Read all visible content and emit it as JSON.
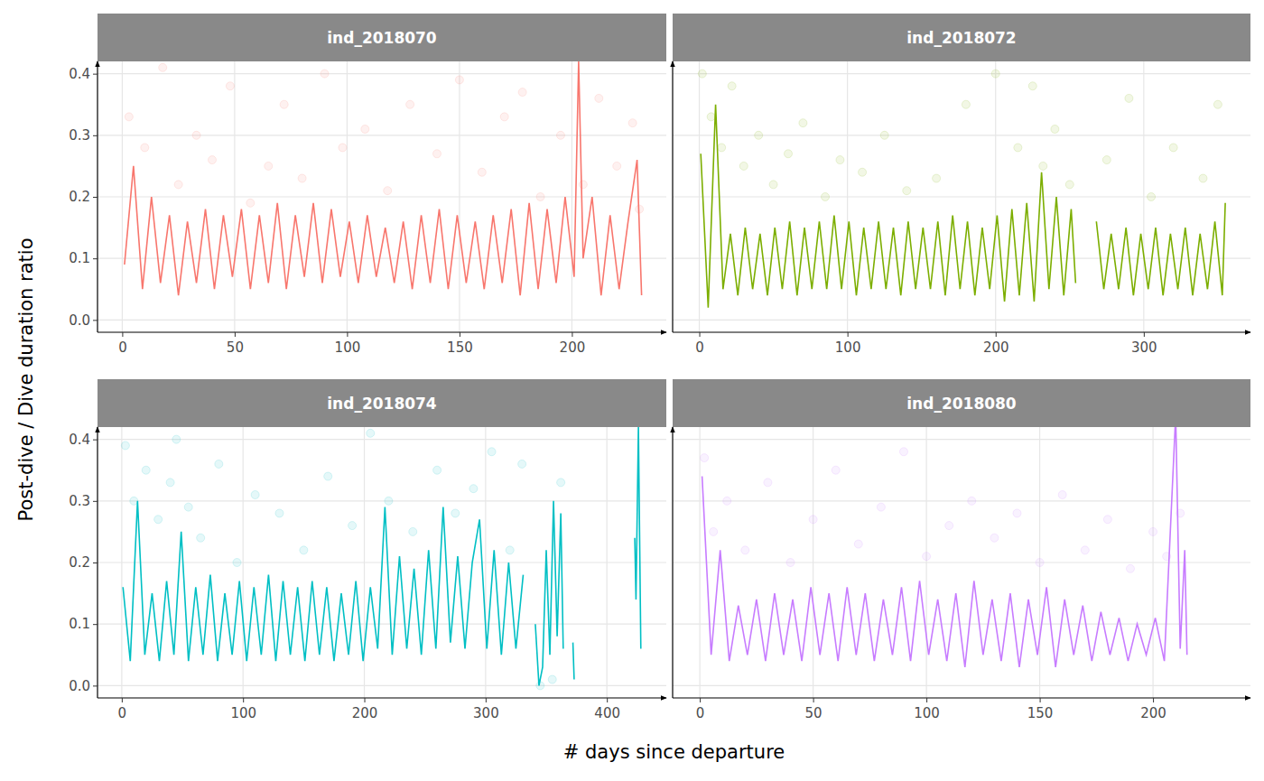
{
  "chart_data": {
    "type": "line",
    "x_label": "# days since departure",
    "y_label": "Post-dive / Dive duration ratio",
    "ylim": [
      -0.02,
      0.42
    ],
    "yticks": [
      {
        "value": 0,
        "label": "0.0"
      },
      0.1,
      0.2,
      0.3,
      0.4
    ],
    "grid": true,
    "panels": [
      {
        "title": "ind_2018070",
        "xlim": [
          -11,
          242
        ],
        "xticks": [
          0,
          50,
          100,
          150,
          200
        ],
        "series": [
          {
            "type": "line",
            "color": "#F8766D",
            "x": [
              1,
              5,
              9,
              13,
              17,
              21,
              25,
              29,
              33,
              37,
              41,
              45,
              49,
              53,
              57,
              61,
              65,
              69,
              73,
              77,
              81,
              85,
              89,
              93,
              97,
              101,
              105,
              109,
              113,
              117,
              121,
              125,
              129,
              133,
              137,
              141,
              145,
              149,
              153,
              157,
              161,
              165,
              169,
              173,
              177,
              181,
              185,
              189,
              193,
              197,
              201,
              203,
              205,
              209,
              213,
              217,
              221,
              225,
              229,
              231
            ],
            "values": [
              0.09,
              0.25,
              0.05,
              0.2,
              0.06,
              0.17,
              0.04,
              0.16,
              0.06,
              0.18,
              0.05,
              0.17,
              0.07,
              0.18,
              0.05,
              0.17,
              0.06,
              0.19,
              0.05,
              0.17,
              0.07,
              0.19,
              0.06,
              0.18,
              0.07,
              0.16,
              0.06,
              0.17,
              0.07,
              0.15,
              0.06,
              0.16,
              0.05,
              0.17,
              0.06,
              0.18,
              0.05,
              0.17,
              0.06,
              0.16,
              0.05,
              0.17,
              0.06,
              0.18,
              0.04,
              0.19,
              0.05,
              0.18,
              0.06,
              0.2,
              0.07,
              0.42,
              0.1,
              0.2,
              0.04,
              0.17,
              0.05,
              0.16,
              0.26,
              0.04
            ]
          },
          {
            "type": "scatter",
            "color": "#F8766D",
            "x": [
              3,
              10,
              18,
              25,
              33,
              40,
              48,
              57,
              65,
              72,
              80,
              90,
              98,
              108,
              118,
              128,
              140,
              150,
              160,
              170,
              178,
              186,
              195,
              205,
              212,
              220,
              227,
              230
            ],
            "values": [
              0.33,
              0.28,
              0.41,
              0.22,
              0.3,
              0.26,
              0.38,
              0.19,
              0.25,
              0.35,
              0.23,
              0.4,
              0.28,
              0.31,
              0.21,
              0.35,
              0.27,
              0.39,
              0.24,
              0.33,
              0.37,
              0.2,
              0.3,
              0.22,
              0.36,
              0.25,
              0.32,
              0.18
            ]
          }
        ]
      },
      {
        "title": "ind_2018072",
        "xlim": [
          -18,
          372
        ],
        "xticks": [
          0,
          100,
          200,
          300
        ],
        "series": [
          {
            "type": "line",
            "color": "#7CAE00",
            "x": [
              1,
              6,
              11,
              16,
              21,
              26,
              31,
              36,
              41,
              46,
              51,
              56,
              61,
              66,
              71,
              76,
              81,
              86,
              91,
              96,
              101,
              106,
              111,
              116,
              121,
              126,
              131,
              136,
              141,
              146,
              151,
              156,
              161,
              166,
              171,
              176,
              181,
              186,
              191,
              196,
              201,
              206,
              211,
              216,
              221,
              226,
              231,
              236,
              241,
              246,
              251,
              254,
              261,
              268,
              273,
              278,
              283,
              288,
              293,
              298,
              303,
              308,
              313,
              318,
              323,
              328,
              333,
              338,
              343,
              348,
              353,
              355
            ],
            "values": [
              0.27,
              0.02,
              0.35,
              0.05,
              0.14,
              0.04,
              0.15,
              0.05,
              0.14,
              0.04,
              0.15,
              0.05,
              0.16,
              0.04,
              0.15,
              0.05,
              0.16,
              0.05,
              0.17,
              0.05,
              0.16,
              0.04,
              0.15,
              0.05,
              0.16,
              0.05,
              0.15,
              0.04,
              0.16,
              0.05,
              0.15,
              0.05,
              0.16,
              0.04,
              0.17,
              0.05,
              0.16,
              0.04,
              0.15,
              0.05,
              0.17,
              0.03,
              0.18,
              0.04,
              0.19,
              0.03,
              0.24,
              0.05,
              0.2,
              0.04,
              0.18,
              0.06,
              null,
              0.16,
              0.05,
              0.14,
              0.05,
              0.15,
              0.04,
              0.14,
              0.05,
              0.15,
              0.04,
              0.14,
              0.05,
              0.15,
              0.04,
              0.14,
              0.05,
              0.16,
              0.04,
              0.19
            ]
          },
          {
            "type": "scatter",
            "color": "#7CAE00",
            "x": [
              2,
              8,
              15,
              22,
              30,
              40,
              50,
              60,
              70,
              85,
              95,
              110,
              125,
              140,
              160,
              180,
              200,
              215,
              225,
              232,
              240,
              250,
              275,
              290,
              305,
              320,
              340,
              350
            ],
            "values": [
              0.4,
              0.33,
              0.28,
              0.38,
              0.25,
              0.3,
              0.22,
              0.27,
              0.32,
              0.2,
              0.26,
              0.24,
              0.3,
              0.21,
              0.23,
              0.35,
              0.4,
              0.28,
              0.38,
              0.25,
              0.31,
              0.22,
              0.26,
              0.36,
              0.2,
              0.28,
              0.23,
              0.35
            ]
          }
        ]
      },
      {
        "title": "ind_2018074",
        "xlim": [
          -20,
          449
        ],
        "xticks": [
          0,
          100,
          200,
          300,
          400
        ],
        "series": [
          {
            "type": "line",
            "color": "#00BFC4",
            "x": [
              1,
              7,
              13,
              19,
              25,
              31,
              37,
              43,
              49,
              55,
              61,
              67,
              73,
              79,
              85,
              91,
              97,
              103,
              109,
              115,
              121,
              127,
              133,
              139,
              145,
              151,
              157,
              163,
              169,
              175,
              181,
              187,
              193,
              199,
              205,
              211,
              217,
              223,
              229,
              235,
              241,
              247,
              253,
              259,
              265,
              271,
              277,
              283,
              289,
              295,
              301,
              307,
              313,
              319,
              325,
              331,
              336,
              341,
              344,
              347,
              350,
              353,
              356,
              359,
              362,
              364,
              368,
              372,
              373,
              398,
              423,
              424,
              426,
              428
            ],
            "values": [
              0.16,
              0.04,
              0.3,
              0.05,
              0.15,
              0.04,
              0.17,
              0.05,
              0.25,
              0.04,
              0.16,
              0.05,
              0.18,
              0.04,
              0.15,
              0.05,
              0.17,
              0.04,
              0.16,
              0.05,
              0.18,
              0.04,
              0.17,
              0.05,
              0.16,
              0.04,
              0.17,
              0.05,
              0.16,
              0.04,
              0.15,
              0.05,
              0.17,
              0.04,
              0.16,
              0.06,
              0.29,
              0.05,
              0.21,
              0.06,
              0.19,
              0.05,
              0.22,
              0.06,
              0.29,
              0.07,
              0.21,
              0.06,
              0.2,
              0.27,
              0.06,
              0.22,
              0.05,
              0.2,
              0.06,
              0.18,
              null,
              0.1,
              0.0,
              0.03,
              0.22,
              0.05,
              0.3,
              0.08,
              0.28,
              0.06,
              null,
              0.07,
              0.01,
              null,
              0.24,
              0.14,
              0.42,
              0.06
            ]
          },
          {
            "type": "scatter",
            "color": "#00BFC4",
            "x": [
              3,
              10,
              20,
              30,
              40,
              45,
              55,
              65,
              80,
              95,
              110,
              130,
              150,
              170,
              190,
              205,
              220,
              240,
              260,
              275,
              290,
              305,
              320,
              330,
              345,
              355,
              362
            ],
            "values": [
              0.39,
              0.3,
              0.35,
              0.27,
              0.33,
              0.4,
              0.29,
              0.24,
              0.36,
              0.2,
              0.31,
              0.28,
              0.22,
              0.34,
              0.26,
              0.41,
              0.3,
              0.25,
              0.35,
              0.28,
              0.32,
              0.38,
              0.22,
              0.36,
              0.0,
              0.01,
              0.33
            ]
          }
        ]
      },
      {
        "title": "ind_2018080",
        "xlim": [
          -12,
          243
        ],
        "xticks": [
          0,
          50,
          100,
          150,
          200
        ],
        "series": [
          {
            "type": "line",
            "color": "#C77CFF",
            "x": [
              1,
              5,
              9,
              13,
              17,
              21,
              25,
              29,
              33,
              37,
              41,
              45,
              49,
              53,
              57,
              61,
              65,
              69,
              73,
              77,
              81,
              85,
              89,
              93,
              97,
              101,
              105,
              109,
              113,
              117,
              121,
              125,
              129,
              133,
              137,
              141,
              145,
              149,
              153,
              157,
              161,
              165,
              169,
              173,
              177,
              181,
              185,
              189,
              193,
              197,
              201,
              205,
              208,
              210,
              212,
              214,
              215
            ],
            "values": [
              0.34,
              0.05,
              0.22,
              0.04,
              0.13,
              0.05,
              0.14,
              0.04,
              0.15,
              0.05,
              0.14,
              0.04,
              0.16,
              0.05,
              0.15,
              0.04,
              0.16,
              0.05,
              0.15,
              0.04,
              0.14,
              0.05,
              0.16,
              0.04,
              0.17,
              0.05,
              0.14,
              0.04,
              0.15,
              0.03,
              0.17,
              0.05,
              0.14,
              0.04,
              0.15,
              0.03,
              0.14,
              0.05,
              0.16,
              0.03,
              0.14,
              0.05,
              0.13,
              0.04,
              0.12,
              0.05,
              0.11,
              0.04,
              0.1,
              0.05,
              0.11,
              0.04,
              0.28,
              0.44,
              0.06,
              0.22,
              0.05
            ]
          },
          {
            "type": "scatter",
            "color": "#C77CFF",
            "x": [
              2,
              6,
              12,
              20,
              30,
              40,
              50,
              60,
              70,
              80,
              90,
              100,
              110,
              120,
              130,
              140,
              150,
              160,
              170,
              180,
              190,
              200,
              206,
              212
            ],
            "values": [
              0.37,
              0.25,
              0.3,
              0.22,
              0.33,
              0.2,
              0.27,
              0.35,
              0.23,
              0.29,
              0.38,
              0.21,
              0.26,
              0.3,
              0.24,
              0.28,
              0.2,
              0.31,
              0.22,
              0.27,
              0.19,
              0.25,
              0.21,
              0.28
            ]
          }
        ]
      }
    ]
  }
}
